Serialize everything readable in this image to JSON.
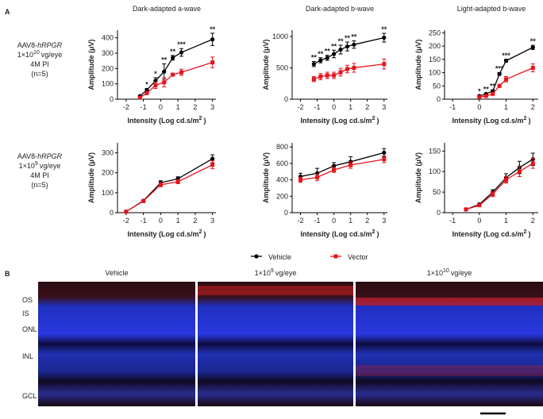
{
  "panel_labels": [
    "A",
    "B"
  ],
  "row_labels": [
    [
      [
        {
          "text": "AAV8-"
        },
        {
          "text": "hRPGR",
          "style": "italic"
        }
      ],
      [
        {
          "text": "1×10"
        },
        {
          "text": "10",
          "style": "sup"
        },
        {
          "text": "vg/eye"
        }
      ],
      [
        {
          "text": "4M PI"
        }
      ],
      [
        {
          "text": "(n=5)"
        }
      ]
    ],
    [
      [
        {
          "text": "AAV8-"
        },
        {
          "text": "hRPGR",
          "style": "italic"
        }
      ],
      [
        {
          "text": "1×10"
        },
        {
          "text": "9",
          "style": "sup"
        },
        {
          "text": "vg/eye"
        }
      ],
      [
        {
          "text": "4M PI"
        }
      ],
      [
        {
          "text": "(n=5)"
        }
      ]
    ]
  ],
  "chart_data": [
    {
      "type": "line",
      "title": "Dark-adapted a-wave",
      "xlabel": [
        {
          "text": "Intensity (Log cd.s/m"
        },
        {
          "text": "2",
          "style": "sup"
        },
        {
          "text": ")"
        }
      ],
      "ylabel": "Amplitude (μV)",
      "xlim": [
        -2.5,
        3.2
      ],
      "ylim": [
        0,
        450
      ],
      "xticks": [
        -2,
        -1,
        0,
        1,
        2,
        3
      ],
      "yticks": [
        0,
        100,
        200,
        300,
        400
      ],
      "x": [
        -1.2,
        -0.8,
        -0.3,
        0.2,
        0.7,
        1.2,
        3
      ],
      "series": [
        {
          "name": "Vehicle",
          "color": "#000000",
          "marker": "circle",
          "values": [
            20,
            60,
            120,
            180,
            270,
            305,
            390
          ],
          "errors": [
            5,
            10,
            20,
            50,
            15,
            25,
            40
          ],
          "significance": [
            null,
            "*",
            "*",
            "**",
            "**",
            "***",
            "**"
          ]
        },
        {
          "name": "Vector",
          "color": "#e8141b",
          "marker": "square",
          "values": [
            10,
            40,
            90,
            110,
            160,
            175,
            240
          ],
          "errors": [
            5,
            10,
            20,
            30,
            10,
            20,
            35
          ]
        }
      ]
    },
    {
      "type": "line",
      "title": "Dark-adapted b-wave",
      "xlabel": [
        {
          "text": "Intensity (Log cd.s/m"
        },
        {
          "text": "2",
          "style": "sup"
        },
        {
          "text": ")"
        }
      ],
      "ylabel": "Amplitude (μV)",
      "xlim": [
        -2.5,
        3.2
      ],
      "ylim": [
        0,
        1100
      ],
      "xticks": [
        -2,
        -1,
        0,
        1,
        2,
        3
      ],
      "yticks": [
        0,
        500,
        1000
      ],
      "x": [
        -1.2,
        -0.8,
        -0.4,
        0,
        0.4,
        0.8,
        1.2,
        3
      ],
      "series": [
        {
          "name": "Vehicle",
          "color": "#000000",
          "marker": "circle",
          "values": [
            560,
            620,
            660,
            720,
            790,
            840,
            870,
            980
          ],
          "errors": [
            40,
            40,
            40,
            60,
            70,
            70,
            60,
            70
          ],
          "significance": [
            "**",
            "**",
            "**",
            "**",
            "**",
            "**",
            "**",
            "**"
          ]
        },
        {
          "name": "Vector",
          "color": "#e8141b",
          "marker": "square",
          "values": [
            320,
            360,
            380,
            380,
            430,
            480,
            500,
            560
          ],
          "errors": [
            40,
            50,
            50,
            50,
            60,
            60,
            70,
            80
          ]
        }
      ]
    },
    {
      "type": "line",
      "title": "Light-adapted b-wave",
      "xlabel": [
        {
          "text": "Intensity (Log cd.s/m"
        },
        {
          "text": "2",
          "style": "sup"
        },
        {
          "text": ")"
        }
      ],
      "ylabel": "Amplitude (μV)",
      "xlim": [
        -1.3,
        2.2
      ],
      "ylim": [
        0,
        260
      ],
      "xticks": [
        -1,
        0,
        1,
        2
      ],
      "yticks": [
        0,
        50,
        100,
        150,
        200,
        250
      ],
      "x": [
        0,
        0.25,
        0.5,
        0.75,
        1,
        2
      ],
      "series": [
        {
          "name": "Vehicle",
          "color": "#000000",
          "marker": "circle",
          "values": [
            12,
            20,
            30,
            95,
            145,
            195
          ],
          "errors": [
            3,
            3,
            5,
            5,
            5,
            8
          ],
          "significance": [
            "*",
            "**",
            "**",
            "***",
            "***",
            "**"
          ]
        },
        {
          "name": "Vector",
          "color": "#e8141b",
          "marker": "square",
          "values": [
            8,
            12,
            20,
            50,
            75,
            118
          ],
          "errors": [
            3,
            3,
            5,
            6,
            10,
            15
          ]
        }
      ]
    },
    {
      "type": "line",
      "xlabel": [
        {
          "text": "Intensity (Log cd.s/m"
        },
        {
          "text": "2",
          "style": "sup"
        },
        {
          "text": ")"
        }
      ],
      "ylabel": "Amplitude (μV)",
      "xlim": [
        -2.5,
        3.2
      ],
      "ylim": [
        0,
        350
      ],
      "xticks": [
        -2,
        -1,
        0,
        1,
        2,
        3
      ],
      "yticks": [
        0,
        100,
        200,
        300
      ],
      "x": [
        -2,
        -1,
        0,
        1,
        3
      ],
      "series": [
        {
          "name": "Vehicle",
          "color": "#000000",
          "marker": "circle",
          "values": [
            5,
            60,
            150,
            170,
            270
          ],
          "errors": [
            5,
            5,
            10,
            10,
            20
          ]
        },
        {
          "name": "Vector",
          "color": "#e8141b",
          "marker": "square",
          "values": [
            5,
            58,
            140,
            155,
            240
          ],
          "errors": [
            5,
            5,
            10,
            10,
            20
          ]
        }
      ]
    },
    {
      "type": "line",
      "xlabel": [
        {
          "text": "Intensity (Log cd.s/m"
        },
        {
          "text": "2",
          "style": "sup"
        },
        {
          "text": ")"
        }
      ],
      "ylabel": "Amplitude (μV)",
      "xlim": [
        -2.5,
        3.2
      ],
      "ylim": [
        0,
        850
      ],
      "xticks": [
        -2,
        -1,
        0,
        1,
        2,
        3
      ],
      "yticks": [
        0,
        200,
        400,
        600,
        800
      ],
      "x": [
        -2,
        -1,
        0,
        1,
        3
      ],
      "series": [
        {
          "name": "Vehicle",
          "color": "#000000",
          "marker": "circle",
          "values": [
            440,
            480,
            570,
            620,
            730
          ],
          "errors": [
            40,
            60,
            40,
            60,
            50
          ]
        },
        {
          "name": "Vector",
          "color": "#e8141b",
          "marker": "square",
          "values": [
            400,
            430,
            520,
            580,
            650
          ],
          "errors": [
            30,
            40,
            30,
            40,
            40
          ]
        }
      ]
    },
    {
      "type": "line",
      "xlabel": [
        {
          "text": "Intensity (Log cd.s/m"
        },
        {
          "text": "2",
          "style": "sup"
        },
        {
          "text": ")"
        }
      ],
      "ylabel": "Amplitude (μV)",
      "xlim": [
        -1.3,
        2.2
      ],
      "ylim": [
        0,
        170
      ],
      "xticks": [
        -1,
        0,
        1,
        2
      ],
      "yticks": [
        0,
        50,
        100,
        150
      ],
      "x": [
        -0.5,
        0,
        0.5,
        1,
        1.5,
        2
      ],
      "series": [
        {
          "name": "Vehicle",
          "color": "#000000",
          "marker": "circle",
          "values": [
            8,
            20,
            50,
            85,
            110,
            130
          ],
          "errors": [
            2,
            3,
            6,
            10,
            15,
            15
          ]
        },
        {
          "name": "Vector",
          "color": "#e8141b",
          "marker": "square",
          "values": [
            8,
            18,
            45,
            80,
            100,
            120
          ],
          "errors": [
            2,
            3,
            6,
            8,
            12,
            12
          ]
        }
      ]
    }
  ],
  "panel_b": {
    "columns": [
      [
        {
          "text": "Vehicle"
        }
      ],
      [
        {
          "text": "1×10"
        },
        {
          "text": "9",
          "style": "sup"
        },
        {
          "text": "vg/eye"
        }
      ],
      [
        {
          "text": "1×10"
        },
        {
          "text": "10",
          "style": "sup"
        },
        {
          "text": "vg/eye"
        }
      ]
    ],
    "layers": [
      "OS",
      "IS",
      "ONL",
      "INL",
      "GCL"
    ]
  }
}
